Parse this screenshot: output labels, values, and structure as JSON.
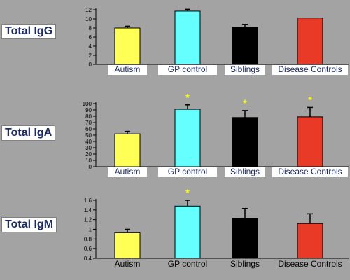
{
  "colors": {
    "background": "#a3a3a3",
    "autism": "#ffff55",
    "gp_control": "#66ffff",
    "siblings": "#000000",
    "disease_controls": "#e83a26",
    "asterisk": "#ffff00",
    "label_highlight_bg": "#ffffff",
    "label_text": "#1a2a6b"
  },
  "chart_data": [
    {
      "type": "bar",
      "panel_label": "Total IgG",
      "categories": [
        "Autism",
        "GP control",
        "Siblings",
        "Disease Controls"
      ],
      "values": [
        8.0,
        11.7,
        8.2,
        10.2
      ],
      "errors": [
        0.4,
        0.4,
        0.6,
        0.0
      ],
      "significant": [
        false,
        false,
        false,
        false
      ],
      "ylim": [
        0,
        12
      ],
      "yticks": [
        "0",
        "2",
        "4",
        "6",
        "8",
        "10",
        "12"
      ],
      "tick_values": [
        0,
        2,
        4,
        6,
        8,
        10,
        12
      ],
      "highlighted_labels": true
    },
    {
      "type": "bar",
      "panel_label": "Total IgA",
      "categories": [
        "Autism",
        "GP control",
        "Siblings",
        "Disease Controls"
      ],
      "values": [
        52,
        91,
        78,
        79
      ],
      "errors": [
        4,
        7,
        11,
        15
      ],
      "significant": [
        false,
        true,
        true,
        true
      ],
      "ylim": [
        0,
        100
      ],
      "yticks": [
        "0",
        "10",
        "20",
        "30",
        "40",
        "50",
        "60",
        "70",
        "80",
        "90",
        "100"
      ],
      "tick_values": [
        0,
        10,
        20,
        30,
        40,
        50,
        60,
        70,
        80,
        90,
        100
      ],
      "highlighted_labels": true
    },
    {
      "type": "bar",
      "panel_label": "Total IgM",
      "categories": [
        "Autism",
        "GP control",
        "Siblings",
        "Disease Controls"
      ],
      "values": [
        0.93,
        1.48,
        1.23,
        1.12
      ],
      "errors": [
        0.07,
        0.12,
        0.2,
        0.2
      ],
      "significant": [
        false,
        true,
        false,
        false
      ],
      "ylim": [
        0.4,
        1.6
      ],
      "yticks": [
        "0.4",
        "0.6",
        "0.8",
        "1",
        "1.2",
        "1.4",
        "1.6"
      ],
      "tick_values": [
        0.4,
        0.6,
        0.8,
        1.0,
        1.2,
        1.4,
        1.6
      ],
      "highlighted_labels": false
    }
  ]
}
